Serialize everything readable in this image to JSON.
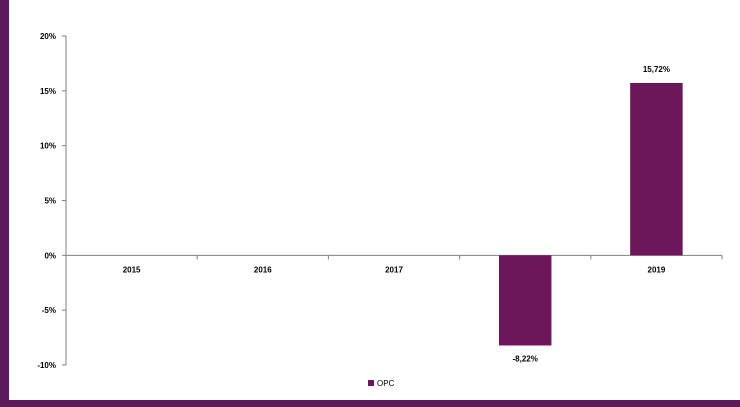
{
  "colors": {
    "frame": "#5B1A5C",
    "bar": "#6B1759",
    "axis": "#7F7F7F",
    "text": "#000000",
    "background": "#FFFFFF"
  },
  "chart_data": {
    "type": "bar",
    "title": "",
    "xlabel": "",
    "ylabel": "",
    "categories": [
      "2015",
      "2016",
      "2017",
      "2018",
      "2019"
    ],
    "series": [
      {
        "name": "OPC",
        "values": [
          null,
          null,
          null,
          -8.22,
          15.72
        ],
        "data_labels": [
          "",
          "",
          "",
          "-8,22%",
          "15,72%"
        ]
      }
    ],
    "ylim": [
      -10,
      20
    ],
    "y_ticks": [
      20,
      15,
      10,
      5,
      0,
      -5,
      -10
    ],
    "y_tick_labels": [
      "20%",
      "15%",
      "10%",
      "5%",
      "0%",
      "-5%",
      "-10%"
    ],
    "grid": false,
    "legend": {
      "position": "bottom",
      "entries": [
        "OPC"
      ]
    }
  }
}
